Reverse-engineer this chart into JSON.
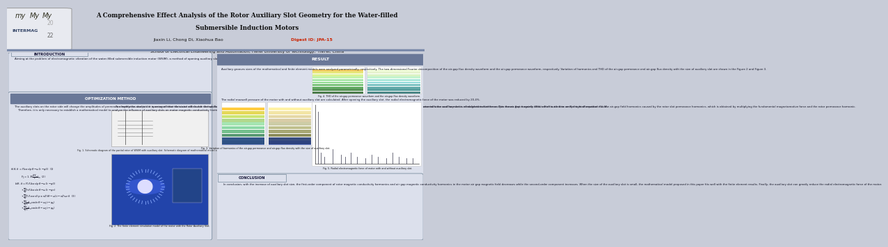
{
  "title_line1": "A Comprehensive Effect Analysis of the Rotor Auxiliary Slot Geometry for the Water-filled",
  "title_line2": "Submersible Induction Motors",
  "authors": "Jiaxin Li, Chong Di, Xiaohua Bao",
  "digest": "Digest ID: JPA-15",
  "affiliation": "School of Electrical Engineering and Automation, Hefei University of Technology,  HeFei, China",
  "title_text_color": "#111111",
  "digest_color": "#cc2200",
  "intro_title": "INTRODUCTION",
  "intro_text": "Aiming at the problem of electromagnetic vibration of the water-filled submersible induction motor (WSIM), a method of opening auxiliary slots on the rotor side is proposed in this paper to weaken the air-gap field harmonics caused by the rotor slot permeance harmonics.",
  "opt_title": "OPTIMIZATION METHOD",
  "opt_text_left": "The auxiliary slots on the rotor side will change the amplitudes of permeance harmonics due to the opening of rotor slots and will double the spatial order of the permeance harmonics. However, it can be seen from equation (1)-(2) that this has no effect on the order and the amplitudes of the fundamental wave and harmonics of magnetomotive force. This means that it mainly affects the fourth item on the right of equation (1), the air-gap field harmonics caused by the rotor slot permeance harmonics, which is obtained by multiplying the fundamental magnetomotive force and the rotor permeance harmonic.\n    Therefore, it is only necessary to establish a mathematical model to analyze the influence of auxiliary slots on motor magnetic conductivity harmonic.",
  "opt_text_right": "To simplify the analysis, it is assumed that the stator side is not slotted. Square waves are used to simulate the air-gap permeance and the schematic is shown in Figure 1. And the same time, the finite element model of the motor with the auxiliary slot is established to further analyze the air-gap magnetic field, which is used to verify the mathematical model.",
  "fig1_caption": "Fig. 1. Schematic diagram of the partial rotor of WSIM with auxiliary slot. Schematic diagram of mathematical model of air-gap permeance.",
  "fig2_caption": "Fig. 2. The finite element simulation model of the motor with the Rotor Auxiliary Slot.",
  "result_title": "RESULT",
  "result_text1": "Auxiliary grooves sizes of the mathematical and finite element models were analyzed parametrically, respectively. The two-dimensional Fourier decomposition of the air-gap flux density waveform and the air-gap permeance waveform, respectively. Variation of harmonics and THD of the air-gap permeance and air-gap flux density with the size of auxiliary slot are shown in the Figure 2 and Figure 3.",
  "result_text2": "The radial maxwell pressure of the motor with and without auxiliary slot are calculated. After opening the auxiliary slot, the radial electromagnetic force of the motor was reduced by 20.4%.",
  "fig3_caption": "Fig. 3. Variation of harmonics of the air-gap permeance and air-gap flux density with the size of auxiliary slot.",
  "fig4_caption": "Fig. 4. THD of the air-gap permeance waveform and the air-gap flux density waveform.",
  "fig5_caption": "Fig. 5. Radial electromagnetic force of motor with and without auxiliary slot.",
  "conclusion_title": "CONCLUSION",
  "conclusion_text": "In conclusion, with the increase of auxiliary slot size, the first-order component of rotor magnetic conductivity harmonics and air gap magnetic conductivity harmonics in the motor air gap magnetic field decreases while the second-order component increases. When the size of the auxiliary slot is small, the mathematical model proposed in this paper fits well with the finite element results. Finally, the auxiliary slot can greatly reduce the radial electromagnetic force of the motor.",
  "bg_color": "#c8ccd8",
  "header_bg": "#dde0ea",
  "section_box_bg": "#dce0ec",
  "opt_header_bg": "#6a7898",
  "result_header_bg": "#6a7898",
  "intro_box_bg": "#dce0ec",
  "conclusion_box_bg": "#dce0ec",
  "logo_bg": "#e8eaf0"
}
